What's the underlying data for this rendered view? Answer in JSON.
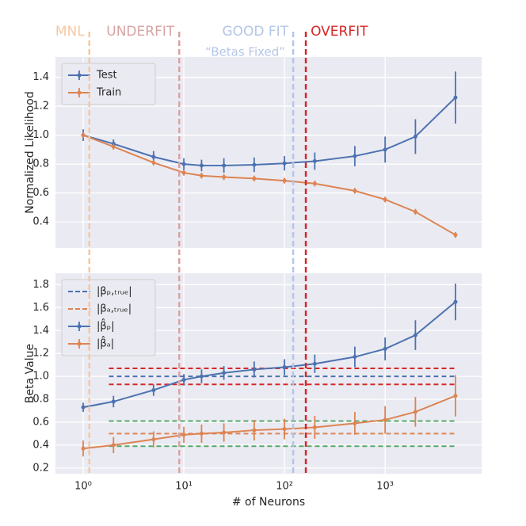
{
  "chart_data": [
    {
      "type": "errorbar-line",
      "ylabel": "Normalized Likelihood",
      "x": [
        1,
        2,
        5,
        10,
        15,
        25,
        50,
        100,
        200,
        500,
        1000,
        2000,
        5000
      ],
      "xlim": [
        0.53,
        9100
      ],
      "xscale": "log",
      "xticks": [
        {
          "value": 1,
          "label": "10⁰"
        },
        {
          "value": 10,
          "label": "10¹"
        },
        {
          "value": 100,
          "label": "10²"
        },
        {
          "value": 1000,
          "label": "10³"
        }
      ],
      "ylim": [
        0.22,
        1.54
      ],
      "yticks": [
        0.4,
        0.6,
        0.8,
        {
          "value": 1,
          "label": "1.0"
        },
        1.2,
        1.4
      ],
      "grid": true,
      "legend": "upper left",
      "series": [
        {
          "name": "Test",
          "color": "#4c72b0",
          "values": [
            1.0,
            0.94,
            0.85,
            0.8,
            0.79,
            0.79,
            0.795,
            0.805,
            0.82,
            0.855,
            0.9,
            0.99,
            1.26
          ],
          "errors": [
            0.04,
            0.03,
            0.04,
            0.04,
            0.04,
            0.05,
            0.05,
            0.05,
            0.06,
            0.07,
            0.09,
            0.12,
            0.18
          ]
        },
        {
          "name": "Train",
          "color": "#dd8452",
          "values": [
            1.0,
            0.92,
            0.81,
            0.74,
            0.72,
            0.71,
            0.7,
            0.685,
            0.665,
            0.615,
            0.555,
            0.47,
            0.31
          ],
          "errors": [
            0.02,
            0.02,
            0.02,
            0.02,
            0.02,
            0.02,
            0.02,
            0.02,
            0.02,
            0.02,
            0.02,
            0.02,
            0.02
          ]
        }
      ],
      "vlines": [
        {
          "x": 1.15,
          "label": "MNL",
          "color": "#f4c9a4"
        },
        {
          "x": 9,
          "label": "UNDERFIT",
          "color": "#d9a3a3"
        },
        {
          "x": 122,
          "label": "GOOD FIT",
          "sublabel": "“Betas Fixed”",
          "color": "#b4c6e7"
        },
        {
          "x": 163,
          "label": "OVERFIT",
          "color": "#d62728"
        }
      ]
    },
    {
      "type": "errorbar-line",
      "ylabel": "Beta Value",
      "xlabel": "# of Neurons",
      "x": [
        1,
        2,
        5,
        10,
        15,
        25,
        50,
        100,
        200,
        500,
        1000,
        2000,
        5000
      ],
      "xlim": [
        0.53,
        9100
      ],
      "xscale": "log",
      "xticks": [
        {
          "value": 1,
          "label": "10⁰"
        },
        {
          "value": 10,
          "label": "10¹"
        },
        {
          "value": 100,
          "label": "10²"
        },
        {
          "value": 1000,
          "label": "10³"
        }
      ],
      "ylim": [
        0.15,
        1.9
      ],
      "yticks": [
        0.2,
        0.4,
        0.6,
        0.8,
        {
          "value": 1,
          "label": "1.0"
        },
        1.2,
        1.4,
        1.6,
        1.8
      ],
      "grid": true,
      "legend": "upper left",
      "hline_xspan": [
        1.8,
        5000
      ],
      "reference_lines": [
        {
          "name": "|βₚ,ₜᵣᵤₑ|",
          "color": "#4c72b0",
          "value": 1.0
        },
        {
          "name": "|βₐ,ₜᵣᵤₑ|",
          "color": "#dd8452",
          "value": 0.5
        }
      ],
      "hlines": [
        {
          "y": 1.07,
          "color": "#d62728"
        },
        {
          "y": 0.93,
          "color": "#d62728"
        },
        {
          "y": 0.61,
          "color": "#55a868"
        },
        {
          "y": 0.39,
          "color": "#55a868"
        }
      ],
      "series": [
        {
          "name": "|β̂ₚ|",
          "color": "#4c72b0",
          "values": [
            0.73,
            0.78,
            0.88,
            0.97,
            1.0,
            1.03,
            1.06,
            1.08,
            1.11,
            1.17,
            1.24,
            1.36,
            1.65
          ],
          "errors": [
            0.04,
            0.05,
            0.05,
            0.05,
            0.06,
            0.06,
            0.07,
            0.07,
            0.08,
            0.09,
            0.1,
            0.13,
            0.16
          ]
        },
        {
          "name": "|β̂ₐ|",
          "color": "#dd8452",
          "values": [
            0.37,
            0.4,
            0.45,
            0.49,
            0.5,
            0.51,
            0.53,
            0.54,
            0.555,
            0.59,
            0.62,
            0.69,
            0.83
          ],
          "errors": [
            0.07,
            0.07,
            0.07,
            0.07,
            0.08,
            0.08,
            0.09,
            0.09,
            0.1,
            0.1,
            0.12,
            0.13,
            0.18
          ]
        }
      ]
    }
  ]
}
